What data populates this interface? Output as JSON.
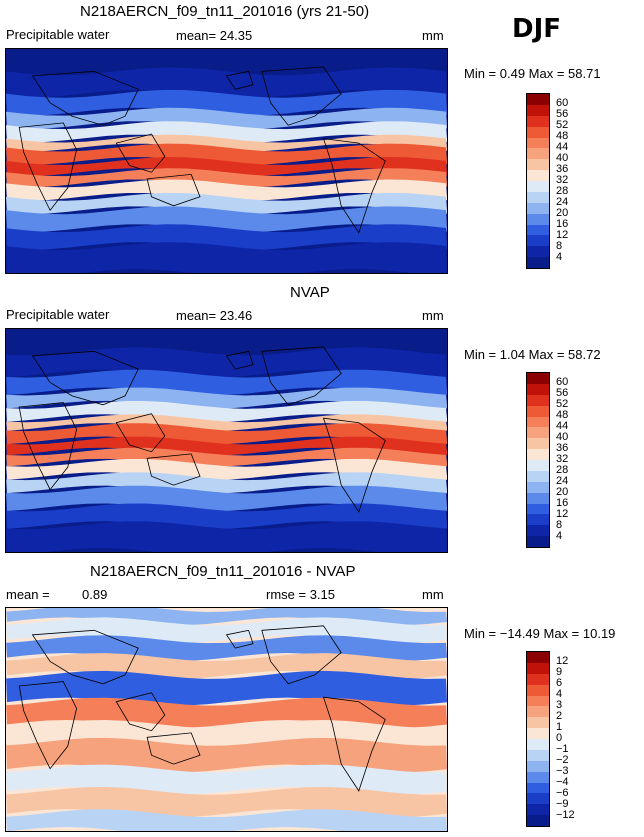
{
  "season": "DJF",
  "panels": [
    {
      "title": "N218AERCN_f09_tn11_201016 (yrs 21-50)",
      "field_label": "Precipitable water",
      "mean_text": "mean=  24.35",
      "units": "mm",
      "range_text": "Min =    0.49  Max =   58.71",
      "colorbar_labels": [
        "60",
        "56",
        "52",
        "48",
        "44",
        "40",
        "36",
        "32",
        "28",
        "24",
        "20",
        "16",
        "12",
        "8",
        "4"
      ],
      "colorbar_colors": [
        "#8b0000",
        "#c1120a",
        "#e0301e",
        "#ef5a36",
        "#f47f58",
        "#f6a27c",
        "#f7c5a4",
        "#fbe6d6",
        "#dfeaf7",
        "#b8d3f3",
        "#8db4f0",
        "#5b8aea",
        "#2f5fe0",
        "#1a3ec8",
        "#0f25a8",
        "#081c8a"
      ],
      "map_style": "positive"
    },
    {
      "title": "NVAP",
      "field_label": "Precipitable water",
      "mean_text": "mean=  23.46",
      "units": "mm",
      "range_text": "Min =    1.04  Max =   58.72",
      "colorbar_labels": [
        "60",
        "56",
        "52",
        "48",
        "44",
        "40",
        "36",
        "32",
        "28",
        "24",
        "20",
        "16",
        "12",
        "8",
        "4"
      ],
      "colorbar_colors": [
        "#8b0000",
        "#c1120a",
        "#e0301e",
        "#ef5a36",
        "#f47f58",
        "#f6a27c",
        "#f7c5a4",
        "#fbe6d6",
        "#dfeaf7",
        "#b8d3f3",
        "#8db4f0",
        "#5b8aea",
        "#2f5fe0",
        "#1a3ec8",
        "#0f25a8",
        "#081c8a"
      ],
      "map_style": "positive"
    },
    {
      "title": "N218AERCN_f09_tn11_201016 - NVAP",
      "field_label": "mean =",
      "field_value": "0.89",
      "rmse_text": "rmse =   3.15",
      "units": "mm",
      "range_text": "Min = −14.49  Max =   10.19",
      "colorbar_labels": [
        "12",
        "9",
        "6",
        "4",
        "3",
        "2",
        "1",
        "0",
        "−1",
        "−2",
        "−3",
        "−4",
        "−6",
        "−9",
        "−12"
      ],
      "colorbar_colors": [
        "#8b0000",
        "#c1120a",
        "#e0301e",
        "#ef5a36",
        "#f47f58",
        "#f6a27c",
        "#f7c5a4",
        "#fbe6d6",
        "#dfeaf7",
        "#b8d3f3",
        "#8db4f0",
        "#5b8aea",
        "#2f5fe0",
        "#1a3ec8",
        "#0f25a8",
        "#081c8a"
      ],
      "map_style": "diff"
    }
  ]
}
